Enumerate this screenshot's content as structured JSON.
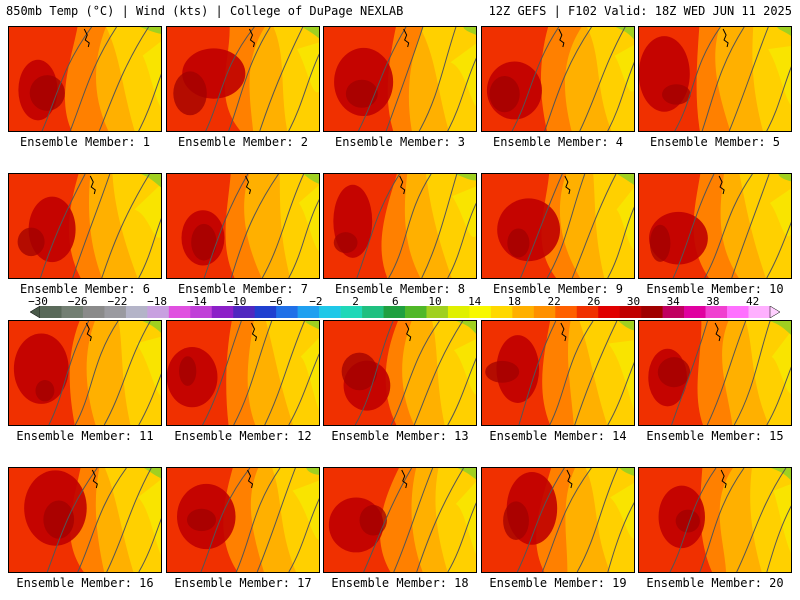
{
  "header": {
    "left": "850mb Temp (°C) | Wind (kts) | College of DuPage NEXLAB",
    "right": "12Z GEFS | F102 Valid: 18Z WED JUN 11 2025"
  },
  "member_label_prefix": "Ensemble Member: ",
  "members": [
    "1",
    "2",
    "3",
    "4",
    "5",
    "6",
    "7",
    "8",
    "9",
    "10",
    "11",
    "12",
    "13",
    "14",
    "15",
    "16",
    "17",
    "18",
    "19",
    "20"
  ],
  "colorbar": {
    "labels": [
      "-30",
      "-26",
      "-22",
      "-18",
      "-14",
      "-10",
      "-6",
      "-2",
      "2",
      "6",
      "10",
      "14",
      "18",
      "22",
      "26",
      "30",
      "34",
      "38",
      "42"
    ],
    "colors": [
      "#5a6a5a",
      "#737f73",
      "#8a8a8a",
      "#9a9aa0",
      "#b4b4c8",
      "#c8a0e0",
      "#e050e0",
      "#c040d8",
      "#8c20c8",
      "#5028c0",
      "#2040d0",
      "#2070e8",
      "#20a0f0",
      "#20c8e8",
      "#20d8b8",
      "#20c080",
      "#20a040",
      "#50b828",
      "#a0d020",
      "#e0f000",
      "#f8f800",
      "#ffd800",
      "#ffb000",
      "#ff9000",
      "#ff6000",
      "#f03000",
      "#e00000",
      "#c00000",
      "#a00000",
      "#c00060",
      "#e000a0",
      "#f040d0",
      "#ff70ff",
      "#ffb0ff"
    ],
    "start_color": "#4a5a4a",
    "end_color": "#ffd0ff"
  }
}
